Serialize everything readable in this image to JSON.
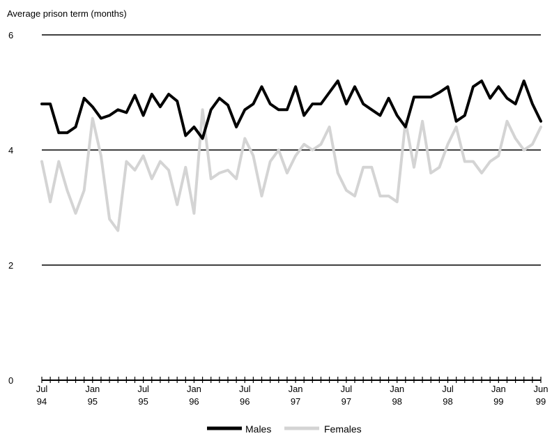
{
  "chart_data": {
    "type": "line",
    "ylabel": "Average prison term (months)",
    "ylim": [
      0,
      6
    ],
    "yticks": [
      0,
      2,
      4,
      6
    ],
    "grid": true,
    "legend_position": "bottom",
    "x": [
      "Jul 94",
      "Aug 94",
      "Sep 94",
      "Oct 94",
      "Nov 94",
      "Dec 94",
      "Jan 95",
      "Feb 95",
      "Mar 95",
      "Apr 95",
      "May 95",
      "Jun 95",
      "Jul 95",
      "Aug 95",
      "Sep 95",
      "Oct 95",
      "Nov 95",
      "Dec 95",
      "Jan 96",
      "Feb 96",
      "Mar 96",
      "Apr 96",
      "May 96",
      "Jun 96",
      "Jul 96",
      "Aug 96",
      "Sep 96",
      "Oct 96",
      "Nov 96",
      "Dec 96",
      "Jan 97",
      "Feb 97",
      "Mar 97",
      "Apr 97",
      "May 97",
      "Jun 97",
      "Jul 97",
      "Aug 97",
      "Sep 97",
      "Oct 97",
      "Nov 97",
      "Dec 97",
      "Jan 98",
      "Feb 98",
      "Mar 98",
      "Apr 98",
      "May 98",
      "Jun 98",
      "Jul 98",
      "Aug 98",
      "Sep 98",
      "Oct 98",
      "Nov 98",
      "Dec 98",
      "Jan 99",
      "Feb 99",
      "Mar 99",
      "Apr 99",
      "May 99",
      "Jun 99"
    ],
    "x_tick_labels": [
      {
        "index": 0,
        "line1": "Jul",
        "line2": "94"
      },
      {
        "index": 6,
        "line1": "Jan",
        "line2": "95"
      },
      {
        "index": 12,
        "line1": "Jul",
        "line2": "95"
      },
      {
        "index": 18,
        "line1": "Jan",
        "line2": "96"
      },
      {
        "index": 24,
        "line1": "Jul",
        "line2": "96"
      },
      {
        "index": 30,
        "line1": "Jan",
        "line2": "97"
      },
      {
        "index": 36,
        "line1": "Jul",
        "line2": "97"
      },
      {
        "index": 42,
        "line1": "Jan",
        "line2": "98"
      },
      {
        "index": 48,
        "line1": "Jul",
        "line2": "98"
      },
      {
        "index": 54,
        "line1": "Jan",
        "line2": "99"
      },
      {
        "index": 59,
        "line1": "Jun",
        "line2": "99"
      }
    ],
    "series": [
      {
        "name": "Males",
        "color": "#000000",
        "values": [
          4.8,
          4.8,
          4.3,
          4.3,
          4.4,
          4.9,
          4.75,
          4.55,
          4.6,
          4.7,
          4.65,
          4.95,
          4.6,
          4.97,
          4.75,
          4.97,
          4.85,
          4.25,
          4.4,
          4.2,
          4.7,
          4.9,
          4.78,
          4.4,
          4.7,
          4.8,
          5.1,
          4.8,
          4.7,
          4.7,
          5.1,
          4.6,
          4.8,
          4.8,
          5.0,
          5.2,
          4.8,
          5.1,
          4.8,
          4.7,
          4.6,
          4.9,
          4.6,
          4.4,
          4.92,
          4.92,
          4.92,
          5.0,
          5.1,
          4.5,
          4.6,
          5.1,
          5.2,
          4.9,
          5.1,
          4.9,
          4.8,
          5.2,
          4.8,
          4.5
        ]
      },
      {
        "name": "Females",
        "color": "#d4d4d4",
        "values": [
          3.8,
          3.1,
          3.8,
          3.3,
          2.9,
          3.3,
          4.55,
          3.9,
          2.8,
          2.6,
          3.8,
          3.65,
          3.9,
          3.5,
          3.8,
          3.65,
          3.05,
          3.7,
          2.9,
          4.7,
          3.5,
          3.6,
          3.65,
          3.5,
          4.2,
          3.9,
          3.2,
          3.8,
          4.0,
          3.6,
          3.9,
          4.1,
          4.0,
          4.1,
          4.4,
          3.6,
          3.3,
          3.2,
          3.7,
          3.7,
          3.2,
          3.2,
          3.1,
          4.5,
          3.7,
          4.5,
          3.6,
          3.7,
          4.1,
          4.4,
          3.8,
          3.8,
          3.6,
          3.8,
          3.9,
          4.5,
          4.2,
          4.0,
          4.1,
          4.4
        ]
      }
    ]
  }
}
